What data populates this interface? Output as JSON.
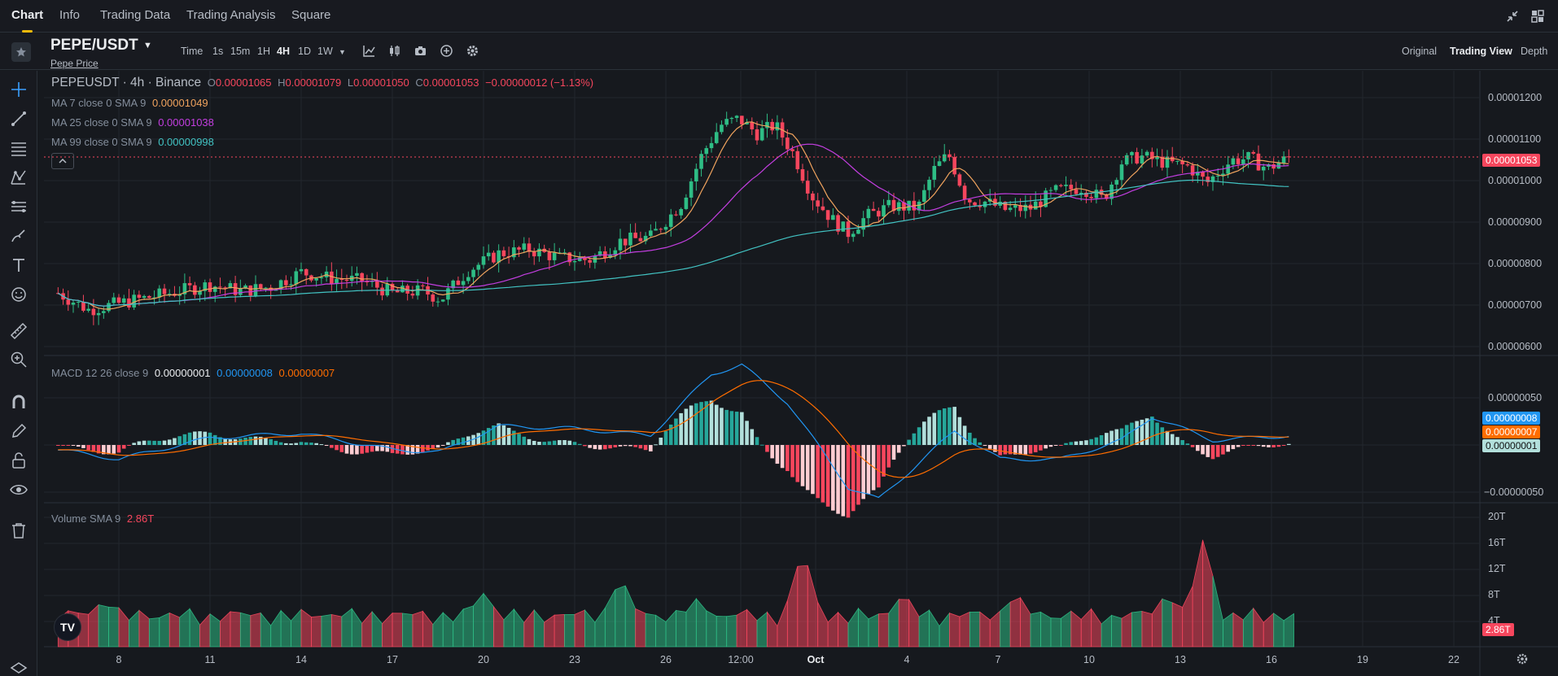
{
  "top_tabs": [
    {
      "label": "Chart",
      "active": true
    },
    {
      "label": "Info",
      "active": false
    },
    {
      "label": "Trading Data",
      "active": false
    },
    {
      "label": "Trading Analysis",
      "active": false
    },
    {
      "label": "Square",
      "active": false
    }
  ],
  "header": {
    "pair": "PEPE/USDT",
    "pair_sub": "Pepe Price",
    "intervals": [
      {
        "label": "Time",
        "active": false
      },
      {
        "label": "1s",
        "active": false
      },
      {
        "label": "15m",
        "active": false
      },
      {
        "label": "1H",
        "active": false
      },
      {
        "label": "4H",
        "active": true
      },
      {
        "label": "1D",
        "active": false
      },
      {
        "label": "1W",
        "active": false
      }
    ],
    "views": [
      {
        "label": "Original",
        "active": false
      },
      {
        "label": "Trading View",
        "active": true
      },
      {
        "label": "Depth",
        "active": false
      }
    ]
  },
  "legend": {
    "symbol": "PEPEUSDT · 4h · Binance",
    "o_label": "O",
    "o_value": "0.00001065",
    "h_label": "H",
    "h_value": "0.00001079",
    "l_label": "L",
    "l_value": "0.00001050",
    "c_label": "C",
    "c_value": "0.00001053",
    "change": "−0.00000012 (−1.13%)",
    "ma7_label": "MA 7 close 0 SMA 9",
    "ma7_value": "0.00001049",
    "ma25_label": "MA 25 close 0 SMA 9",
    "ma25_value": "0.00001038",
    "ma99_label": "MA 99 close 0 SMA 9",
    "ma99_value": "0.00000998",
    "macd_label": "MACD 12 26 close 9",
    "macd_hist": "0.00000001",
    "macd_line": "0.00000008",
    "macd_signal": "0.00000007",
    "vol_label": "Volume SMA 9",
    "vol_value": "2.86T"
  },
  "price_axis": [
    "0.00001200",
    "0.00001100",
    "0.00001000",
    "0.00000900",
    "0.00000800",
    "0.00000700",
    "0.00000600"
  ],
  "macd_axis": [
    "0.00000050",
    "−0.00000050"
  ],
  "volume_axis": [
    "20T",
    "16T",
    "12T",
    "8T",
    "4T"
  ],
  "badges": {
    "last_price": "0.00001053",
    "macd_line": "0.00000008",
    "macd_signal": "0.00000007",
    "macd_hist": "0.00000001",
    "volume": "2.86T"
  },
  "time_axis": [
    "8",
    "11",
    "14",
    "17",
    "20",
    "23",
    "26",
    "12:00",
    "Oct",
    "4",
    "7",
    "10",
    "13",
    "16",
    "19",
    "22"
  ],
  "colors": {
    "up": "#2ebd85",
    "down": "#f6465d",
    "ma7": "#f0a35e",
    "ma25": "#c33ee0",
    "ma99": "#42c3c3",
    "macd": "#2196f3",
    "signal": "#ff6d00",
    "accent": "#f0b90b"
  },
  "chart_data": {
    "type": "candlestick",
    "interval": "4h",
    "price_range": [
      5.6e-06,
      1.25e-05
    ],
    "close_path": [
      {
        "t": 6.0,
        "p": 7.25
      },
      {
        "t": 7.0,
        "p": 6.85
      },
      {
        "t": 8.0,
        "p": 7.0
      },
      {
        "t": 9.0,
        "p": 7.15
      },
      {
        "t": 10.0,
        "p": 7.3
      },
      {
        "t": 11.0,
        "p": 7.45
      },
      {
        "t": 12.0,
        "p": 7.3
      },
      {
        "t": 13.0,
        "p": 7.4
      },
      {
        "t": 14.0,
        "p": 7.75
      },
      {
        "t": 15.0,
        "p": 7.6
      },
      {
        "t": 16.0,
        "p": 7.55
      },
      {
        "t": 17.0,
        "p": 7.25
      },
      {
        "t": 18.0,
        "p": 7.3
      },
      {
        "t": 18.6,
        "p": 7.1
      },
      {
        "t": 19.5,
        "p": 7.8
      },
      {
        "t": 20.5,
        "p": 8.2
      },
      {
        "t": 21.5,
        "p": 8.3
      },
      {
        "t": 22.5,
        "p": 8.1
      },
      {
        "t": 23.5,
        "p": 8.05
      },
      {
        "t": 24.5,
        "p": 8.5
      },
      {
        "t": 25.5,
        "p": 8.6
      },
      {
        "t": 26.5,
        "p": 9.4
      },
      {
        "t": 27.2,
        "p": 10.6
      },
      {
        "t": 27.8,
        "p": 11.3
      },
      {
        "t": 28.4,
        "p": 11.45
      },
      {
        "t": 29.0,
        "p": 11.1
      },
      {
        "t": 29.6,
        "p": 11.3
      },
      {
        "t": 30.2,
        "p": 10.6
      },
      {
        "t": 30.8,
        "p": 9.6
      },
      {
        "t": 31.5,
        "p": 9.0
      },
      {
        "t": 32.0,
        "p": 8.7
      },
      {
        "t": 32.6,
        "p": 9.1
      },
      {
        "t": 33.4,
        "p": 9.35
      },
      {
        "t": 34.3,
        "p": 9.3
      },
      {
        "t": 34.8,
        "p": 10.2
      },
      {
        "t": 35.3,
        "p": 10.6
      },
      {
        "t": 35.9,
        "p": 9.5
      },
      {
        "t": 36.5,
        "p": 9.45
      },
      {
        "t": 37.2,
        "p": 9.25
      },
      {
        "t": 38.0,
        "p": 9.3
      },
      {
        "t": 38.8,
        "p": 9.7
      },
      {
        "t": 39.7,
        "p": 9.8
      },
      {
        "t": 40.4,
        "p": 9.5
      },
      {
        "t": 41.0,
        "p": 10.4
      },
      {
        "t": 41.6,
        "p": 10.55
      },
      {
        "t": 42.4,
        "p": 10.4
      },
      {
        "t": 43.2,
        "p": 10.3
      },
      {
        "t": 43.8,
        "p": 9.9
      },
      {
        "t": 44.6,
        "p": 10.45
      },
      {
        "t": 45.2,
        "p": 10.5
      },
      {
        "t": 45.8,
        "p": 10.25
      },
      {
        "t": 46.6,
        "p": 10.55
      }
    ],
    "macd_path": [
      {
        "t": 6.0,
        "m": -0.1
      },
      {
        "t": 8.0,
        "m": -0.3
      },
      {
        "t": 11.0,
        "m": 0.15
      },
      {
        "t": 14.0,
        "m": 0.25
      },
      {
        "t": 17.0,
        "m": -0.1
      },
      {
        "t": 18.6,
        "m": -0.15
      },
      {
        "t": 20.5,
        "m": 0.4
      },
      {
        "t": 23.0,
        "m": 0.35
      },
      {
        "t": 25.5,
        "m": 0.2
      },
      {
        "t": 27.5,
        "m": 1.5
      },
      {
        "t": 28.5,
        "m": 1.7
      },
      {
        "t": 30.0,
        "m": 0.9
      },
      {
        "t": 32.0,
        "m": -0.9
      },
      {
        "t": 33.0,
        "m": -1.15
      },
      {
        "t": 35.5,
        "m": 0.3
      },
      {
        "t": 37.0,
        "m": -0.3
      },
      {
        "t": 39.0,
        "m": -0.3
      },
      {
        "t": 41.0,
        "m": 0.1
      },
      {
        "t": 42.0,
        "m": 0.6
      },
      {
        "t": 44.0,
        "m": 0.1
      },
      {
        "t": 46.6,
        "m": 0.2
      }
    ],
    "volume_peaks_T": [
      {
        "t": 7.5,
        "v": 7.6
      },
      {
        "t": 15.0,
        "v": 5.0
      },
      {
        "t": 20.0,
        "v": 9.0
      },
      {
        "t": 24.5,
        "v": 12.2
      },
      {
        "t": 27.0,
        "v": 8.0
      },
      {
        "t": 30.5,
        "v": 17.7
      },
      {
        "t": 33.8,
        "v": 8.8
      },
      {
        "t": 37.5,
        "v": 9.0
      },
      {
        "t": 42.5,
        "v": 9.0
      },
      {
        "t": 43.7,
        "v": 19.9
      },
      {
        "t": 46.6,
        "v": 2.86
      }
    ]
  }
}
